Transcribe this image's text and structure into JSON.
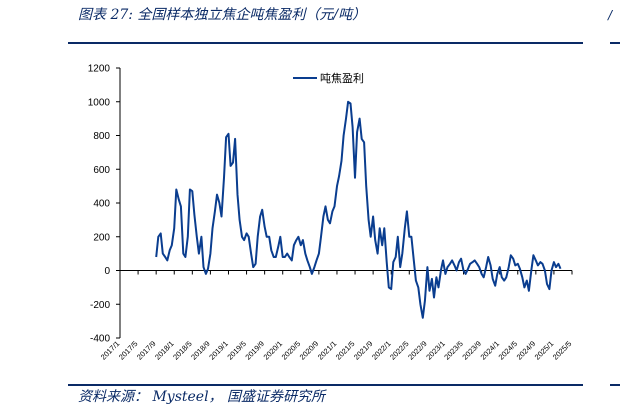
{
  "figure": {
    "title": "图表 27:  全国样本独立焦企吨焦盈利（元/吨）",
    "source": "资料来源： Mysteel， 国盛证券研究所",
    "edge_glyph": "/"
  },
  "colors": {
    "line": "#0a3d8f",
    "rule": "#0a2a66",
    "axis": "#000000"
  },
  "chart_data": {
    "type": "line",
    "title": "",
    "xlabel": "",
    "ylabel": "",
    "ylim": [
      -400,
      1200
    ],
    "yticks": [
      -400,
      -200,
      0,
      200,
      400,
      600,
      800,
      1000,
      1200
    ],
    "xlim": [
      "2017-01",
      "2025-05"
    ],
    "xticks": [
      "2017/1",
      "2017/5",
      "2017/9",
      "2018/1",
      "2018/5",
      "2018/9",
      "2019/1",
      "2019/5",
      "2019/9",
      "2020/1",
      "2020/5",
      "2020/9",
      "2021/1",
      "2021/5",
      "2021/9",
      "2022/1",
      "2022/5",
      "2022/9",
      "2023/1",
      "2023/5",
      "2023/9",
      "2024/1",
      "2024/5",
      "2024/9",
      "2025/1",
      "2025/5"
    ],
    "grid": false,
    "legend_position": "top-center",
    "series": [
      {
        "name": "吨焦盈利",
        "points": [
          [
            "2017-09",
            80
          ],
          [
            "2017-09-15",
            200
          ],
          [
            "2017-10",
            220
          ],
          [
            "2017-10-15",
            100
          ],
          [
            "2017-11",
            80
          ],
          [
            "2017-11-15",
            60
          ],
          [
            "2017-12",
            120
          ],
          [
            "2017-12-15",
            150
          ],
          [
            "2018-01",
            250
          ],
          [
            "2018-01-15",
            480
          ],
          [
            "2018-02",
            420
          ],
          [
            "2018-02-15",
            380
          ],
          [
            "2018-03",
            100
          ],
          [
            "2018-03-15",
            80
          ],
          [
            "2018-04",
            200
          ],
          [
            "2018-04-15",
            480
          ],
          [
            "2018-05",
            470
          ],
          [
            "2018-05-15",
            330
          ],
          [
            "2018-06",
            200
          ],
          [
            "2018-06-15",
            100
          ],
          [
            "2018-07",
            200
          ],
          [
            "2018-07-15",
            20
          ],
          [
            "2018-08",
            -20
          ],
          [
            "2018-08-15",
            10
          ],
          [
            "2018-09",
            100
          ],
          [
            "2018-09-15",
            250
          ],
          [
            "2018-10",
            350
          ],
          [
            "2018-10-15",
            450
          ],
          [
            "2018-11",
            400
          ],
          [
            "2018-11-15",
            320
          ],
          [
            "2018-12",
            550
          ],
          [
            "2018-12-15",
            790
          ],
          [
            "2019-01",
            810
          ],
          [
            "2019-01-15",
            620
          ],
          [
            "2019-02",
            640
          ],
          [
            "2019-02-15",
            780
          ],
          [
            "2019-03",
            450
          ],
          [
            "2019-03-15",
            300
          ],
          [
            "2019-04",
            200
          ],
          [
            "2019-04-15",
            180
          ],
          [
            "2019-05",
            220
          ],
          [
            "2019-05-15",
            200
          ],
          [
            "2019-06",
            100
          ],
          [
            "2019-06-15",
            20
          ],
          [
            "2019-07",
            40
          ],
          [
            "2019-07-15",
            200
          ],
          [
            "2019-08",
            320
          ],
          [
            "2019-08-15",
            360
          ],
          [
            "2019-09",
            260
          ],
          [
            "2019-09-15",
            200
          ],
          [
            "2019-10",
            200
          ],
          [
            "2019-10-15",
            120
          ],
          [
            "2019-11",
            80
          ],
          [
            "2019-11-15",
            80
          ],
          [
            "2019-12",
            140
          ],
          [
            "2019-12-15",
            200
          ],
          [
            "2020-01",
            80
          ],
          [
            "2020-01-15",
            80
          ],
          [
            "2020-02",
            100
          ],
          [
            "2020-02-15",
            80
          ],
          [
            "2020-03",
            60
          ],
          [
            "2020-03-15",
            150
          ],
          [
            "2020-04",
            180
          ],
          [
            "2020-04-15",
            200
          ],
          [
            "2020-05",
            150
          ],
          [
            "2020-05-15",
            180
          ],
          [
            "2020-06",
            100
          ],
          [
            "2020-06-15",
            60
          ],
          [
            "2020-07",
            20
          ],
          [
            "2020-07-15",
            -20
          ],
          [
            "2020-08",
            20
          ],
          [
            "2020-08-15",
            60
          ],
          [
            "2020-09",
            100
          ],
          [
            "2020-09-15",
            200
          ],
          [
            "2020-10",
            320
          ],
          [
            "2020-10-15",
            380
          ],
          [
            "2020-11",
            300
          ],
          [
            "2020-11-15",
            280
          ],
          [
            "2020-12",
            350
          ],
          [
            "2020-12-15",
            380
          ],
          [
            "2021-01",
            500
          ],
          [
            "2021-01-15",
            560
          ],
          [
            "2021-02",
            650
          ],
          [
            "2021-02-15",
            800
          ],
          [
            "2021-03",
            900
          ],
          [
            "2021-03-15",
            1000
          ],
          [
            "2021-04",
            990
          ],
          [
            "2021-04-15",
            850
          ],
          [
            "2021-05",
            550
          ],
          [
            "2021-05-15",
            820
          ],
          [
            "2021-06",
            900
          ],
          [
            "2021-06-15",
            780
          ],
          [
            "2021-07",
            760
          ],
          [
            "2021-07-15",
            500
          ],
          [
            "2021-08",
            300
          ],
          [
            "2021-08-15",
            200
          ],
          [
            "2021-09",
            320
          ],
          [
            "2021-09-15",
            180
          ],
          [
            "2021-10",
            100
          ],
          [
            "2021-10-15",
            250
          ],
          [
            "2021-11",
            150
          ],
          [
            "2021-11-15",
            250
          ],
          [
            "2021-12",
            50
          ],
          [
            "2021-12-15",
            -100
          ],
          [
            "2022-01",
            -110
          ],
          [
            "2022-01-15",
            50
          ],
          [
            "2022-02",
            80
          ],
          [
            "2022-02-15",
            200
          ],
          [
            "2022-03",
            20
          ],
          [
            "2022-03-15",
            100
          ],
          [
            "2022-04",
            250
          ],
          [
            "2022-04-15",
            350
          ],
          [
            "2022-05",
            200
          ],
          [
            "2022-05-15",
            200
          ],
          [
            "2022-06",
            60
          ],
          [
            "2022-06-15",
            -60
          ],
          [
            "2022-07",
            -100
          ],
          [
            "2022-07-15",
            -200
          ],
          [
            "2022-08",
            -280
          ],
          [
            "2022-08-15",
            -180
          ],
          [
            "2022-09",
            20
          ],
          [
            "2022-09-15",
            -120
          ],
          [
            "2022-10",
            -50
          ],
          [
            "2022-10-15",
            -160
          ],
          [
            "2022-11",
            -40
          ],
          [
            "2022-11-15",
            -100
          ],
          [
            "2022-12",
            0
          ],
          [
            "2022-12-15",
            60
          ],
          [
            "2023-01",
            -20
          ],
          [
            "2023-01-15",
            20
          ],
          [
            "2023-02",
            40
          ],
          [
            "2023-02-15",
            60
          ],
          [
            "2023-03",
            30
          ],
          [
            "2023-03-15",
            0
          ],
          [
            "2023-04",
            50
          ],
          [
            "2023-04-15",
            70
          ],
          [
            "2023-05",
            0
          ],
          [
            "2023-05-15",
            -20
          ],
          [
            "2023-06",
            10
          ],
          [
            "2023-06-15",
            40
          ],
          [
            "2023-07",
            50
          ],
          [
            "2023-07-15",
            60
          ],
          [
            "2023-08",
            40
          ],
          [
            "2023-08-15",
            20
          ],
          [
            "2023-09",
            -20
          ],
          [
            "2023-09-15",
            -40
          ],
          [
            "2023-10",
            20
          ],
          [
            "2023-10-15",
            80
          ],
          [
            "2023-11",
            30
          ],
          [
            "2023-11-15",
            -50
          ],
          [
            "2023-12",
            -90
          ],
          [
            "2023-12-15",
            -20
          ],
          [
            "2024-01",
            20
          ],
          [
            "2024-01-15",
            -40
          ],
          [
            "2024-02",
            -60
          ],
          [
            "2024-02-15",
            -40
          ],
          [
            "2024-03",
            20
          ],
          [
            "2024-03-15",
            90
          ],
          [
            "2024-04",
            70
          ],
          [
            "2024-04-15",
            30
          ],
          [
            "2024-05",
            40
          ],
          [
            "2024-05-15",
            10
          ],
          [
            "2024-06",
            -40
          ],
          [
            "2024-06-15",
            -100
          ],
          [
            "2024-07",
            -60
          ],
          [
            "2024-07-15",
            -120
          ],
          [
            "2024-08",
            0
          ],
          [
            "2024-08-15",
            90
          ],
          [
            "2024-09",
            60
          ],
          [
            "2024-09-15",
            30
          ],
          [
            "2024-10",
            50
          ],
          [
            "2024-10-15",
            40
          ],
          [
            "2024-11",
            0
          ],
          [
            "2024-11-15",
            -80
          ],
          [
            "2024-12",
            -110
          ],
          [
            "2024-12-15",
            0
          ],
          [
            "2025-01",
            50
          ],
          [
            "2025-01-15",
            20
          ],
          [
            "2025-02",
            40
          ],
          [
            "2025-02-15",
            10
          ]
        ]
      }
    ]
  }
}
